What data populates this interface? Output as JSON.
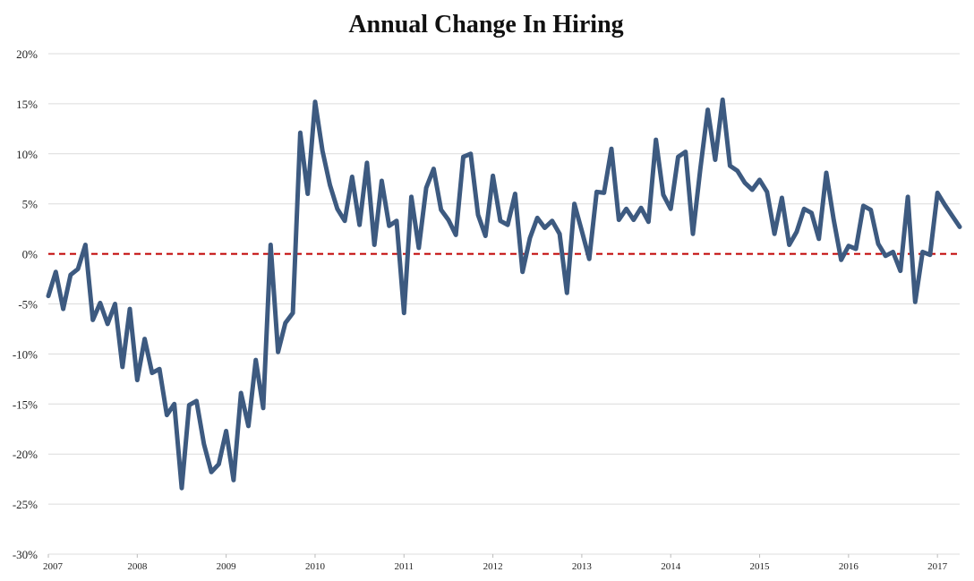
{
  "chart_data": {
    "type": "line",
    "title": "Annual Change In Hiring",
    "xlabel": "",
    "ylabel": "",
    "y_unit": "percent",
    "ylim": [
      -30,
      20
    ],
    "y_ticks": [
      20,
      15,
      10,
      5,
      0,
      -5,
      -10,
      -15,
      -20,
      -25,
      -30
    ],
    "y_tick_labels": [
      "20%",
      "15%",
      "10%",
      "5%",
      "0%",
      "-5%",
      "-10%",
      "-15%",
      "-20%",
      "-25%",
      "-30%"
    ],
    "x_tick_labels": [
      "2007",
      "2008",
      "2009",
      "2010",
      "2011",
      "2012",
      "2013",
      "2014",
      "2015",
      "2016",
      "2017"
    ],
    "x_range": [
      "2007-01",
      "2017-04"
    ],
    "grid": true,
    "legend": "none",
    "zero_line": {
      "value": 0,
      "style": "dashed",
      "color": "#c00000"
    },
    "series": [
      {
        "color": "#3d5a80",
        "x": [
          "2007-01",
          "2007-02",
          "2007-03",
          "2007-04",
          "2007-05",
          "2007-06",
          "2007-07",
          "2007-08",
          "2007-09",
          "2007-10",
          "2007-11",
          "2007-12",
          "2008-01",
          "2008-02",
          "2008-03",
          "2008-04",
          "2008-05",
          "2008-06",
          "2008-07",
          "2008-08",
          "2008-09",
          "2008-10",
          "2008-11",
          "2008-12",
          "2009-01",
          "2009-02",
          "2009-03",
          "2009-04",
          "2009-05",
          "2009-06",
          "2009-07",
          "2009-08",
          "2009-09",
          "2009-10",
          "2009-11",
          "2009-12",
          "2010-01",
          "2010-02",
          "2010-03",
          "2010-04",
          "2010-05",
          "2010-06",
          "2010-07",
          "2010-08",
          "2010-09",
          "2010-10",
          "2010-11",
          "2010-12",
          "2011-01",
          "2011-02",
          "2011-03",
          "2011-04",
          "2011-05",
          "2011-06",
          "2011-07",
          "2011-08",
          "2011-09",
          "2011-10",
          "2011-11",
          "2011-12",
          "2012-01",
          "2012-02",
          "2012-03",
          "2012-04",
          "2012-05",
          "2012-06",
          "2012-07",
          "2012-08",
          "2012-09",
          "2012-10",
          "2012-11",
          "2012-12",
          "2013-01",
          "2013-02",
          "2013-03",
          "2013-04",
          "2013-05",
          "2013-06",
          "2013-07",
          "2013-08",
          "2013-09",
          "2013-10",
          "2013-11",
          "2013-12",
          "2014-01",
          "2014-02",
          "2014-03",
          "2014-04",
          "2014-05",
          "2014-06",
          "2014-07",
          "2014-08",
          "2014-09",
          "2014-10",
          "2014-11",
          "2014-12",
          "2015-01",
          "2015-02",
          "2015-03",
          "2015-04",
          "2015-05",
          "2015-06",
          "2015-07",
          "2015-08",
          "2015-09",
          "2015-10",
          "2015-11",
          "2015-12",
          "2016-01",
          "2016-02",
          "2016-03",
          "2016-04",
          "2016-05",
          "2016-06",
          "2016-07",
          "2016-08",
          "2016-09",
          "2016-10",
          "2016-11",
          "2016-12",
          "2017-01",
          "2017-02",
          "2017-03",
          "2017-04"
        ],
        "values": [
          -4.2,
          -1.8,
          -5.5,
          -2.1,
          -1.5,
          0.9,
          -6.6,
          -4.9,
          -7.0,
          -5.0,
          -11.3,
          -5.5,
          -12.6,
          -8.5,
          -11.9,
          -11.5,
          -16.1,
          -15.0,
          -23.4,
          -15.1,
          -14.7,
          -19.0,
          -21.8,
          -21.0,
          -17.7,
          -22.6,
          -13.9,
          -17.2,
          -10.6,
          -15.4,
          0.9,
          -9.8,
          -6.9,
          -5.9,
          12.1,
          6.0,
          15.2,
          10.3,
          6.9,
          4.5,
          3.3,
          7.7,
          2.9,
          9.1,
          0.9,
          7.3,
          2.8,
          3.3,
          -5.9,
          5.7,
          0.6,
          6.6,
          8.5,
          4.4,
          3.4,
          1.9,
          9.7,
          10.0,
          3.9,
          1.8,
          7.8,
          3.3,
          2.9,
          6.0,
          -1.8,
          1.6,
          3.6,
          2.6,
          3.3,
          2.0,
          -3.9,
          5.0,
          2.3,
          -0.5,
          6.2,
          6.1,
          10.5,
          3.4,
          4.5,
          3.4,
          4.6,
          3.2,
          11.4,
          5.9,
          4.5,
          9.7,
          10.2,
          2.0,
          8.5,
          14.4,
          9.4,
          15.4,
          8.8,
          8.3,
          7.1,
          6.4,
          7.4,
          6.2,
          2.0,
          5.6,
          0.9,
          2.2,
          4.5,
          4.1,
          1.5,
          8.1,
          3.4,
          -0.6,
          0.8,
          0.5,
          4.8,
          4.4,
          1.0,
          -0.2,
          0.2,
          -1.7,
          5.7,
          -4.8,
          0.2,
          -0.1,
          6.1,
          4.9,
          3.8,
          2.7
        ]
      }
    ]
  }
}
